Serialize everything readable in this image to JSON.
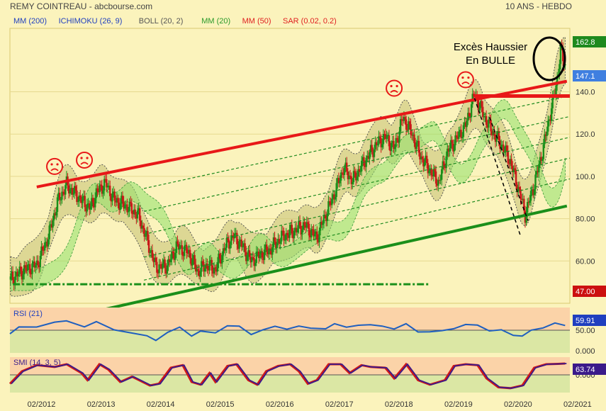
{
  "header": {
    "title": "REMY COINTREAU - abcbourse.com",
    "period": "10 ANS - HEBDO"
  },
  "legend": [
    {
      "label": "MM (200)",
      "color": "#1f3fbf"
    },
    {
      "label": "ICHIMOKU (26, 9)",
      "color": "#1f3fbf"
    },
    {
      "label": "BOLL (20, 2)",
      "color": "#555555"
    },
    {
      "label": "MM (20)",
      "color": "#2a9a2a"
    },
    {
      "label": "MM (50)",
      "color": "#e02020"
    },
    {
      "label": "SAR (0.02, 0.2)",
      "color": "#e02020"
    }
  ],
  "annotation": {
    "line1": "Excès Haussier",
    "line2": "En BULLE"
  },
  "chart_data": [
    {
      "type": "line",
      "name": "price",
      "x_labels": [
        "02/2012",
        "02/2013",
        "02/2014",
        "02/2015",
        "02/2016",
        "02/2017",
        "02/2018",
        "02/2019",
        "02/2020",
        "02/2021"
      ],
      "y_ticks": [
        60.0,
        80.0,
        100.0,
        120.0,
        140.0
      ],
      "ylim": [
        40,
        170
      ],
      "badges": [
        {
          "value": "162.8",
          "bg": "#1e8a1e"
        },
        {
          "value": "147.1",
          "bg": "#3f7fe0"
        },
        {
          "value": "47.00",
          "bg": "#cc1010"
        }
      ],
      "close": [
        [
          2011.55,
          51
        ],
        [
          2011.8,
          56
        ],
        [
          2012.0,
          58
        ],
        [
          2012.2,
          72
        ],
        [
          2012.35,
          88
        ],
        [
          2012.5,
          96
        ],
        [
          2012.7,
          90
        ],
        [
          2012.9,
          85
        ],
        [
          2013.0,
          92
        ],
        [
          2013.15,
          97
        ],
        [
          2013.3,
          89
        ],
        [
          2013.5,
          86
        ],
        [
          2013.7,
          82
        ],
        [
          2013.85,
          70
        ],
        [
          2014.0,
          57
        ],
        [
          2014.2,
          58
        ],
        [
          2014.35,
          67
        ],
        [
          2014.55,
          64
        ],
        [
          2014.7,
          55
        ],
        [
          2014.85,
          58
        ],
        [
          2015.0,
          56
        ],
        [
          2015.15,
          66
        ],
        [
          2015.3,
          72
        ],
        [
          2015.45,
          67
        ],
        [
          2015.6,
          60
        ],
        [
          2015.75,
          63
        ],
        [
          2015.9,
          65
        ],
        [
          2016.1,
          71
        ],
        [
          2016.3,
          74
        ],
        [
          2016.5,
          77
        ],
        [
          2016.7,
          71
        ],
        [
          2016.85,
          82
        ],
        [
          2017.0,
          92
        ],
        [
          2017.15,
          104
        ],
        [
          2017.3,
          98
        ],
        [
          2017.5,
          107
        ],
        [
          2017.7,
          115
        ],
        [
          2017.85,
          119
        ],
        [
          2018.0,
          113
        ],
        [
          2018.15,
          128
        ],
        [
          2018.3,
          120
        ],
        [
          2018.45,
          109
        ],
        [
          2018.6,
          103
        ],
        [
          2018.75,
          97
        ],
        [
          2018.9,
          112
        ],
        [
          2019.05,
          118
        ],
        [
          2019.2,
          124
        ],
        [
          2019.35,
          139
        ],
        [
          2019.5,
          129
        ],
        [
          2019.65,
          121
        ],
        [
          2019.8,
          115
        ],
        [
          2019.95,
          107
        ],
        [
          2020.1,
          93
        ],
        [
          2020.2,
          82
        ],
        [
          2020.35,
          96
        ],
        [
          2020.5,
          113
        ],
        [
          2020.6,
          127
        ],
        [
          2020.72,
          143
        ],
        [
          2020.8,
          160
        ],
        [
          2020.87,
          152
        ]
      ],
      "trendlines": [
        {
          "name": "resistance",
          "from": [
            2012.0,
            95
          ],
          "to": [
            2020.9,
            145
          ]
        },
        {
          "name": "support",
          "from": [
            2012.0,
            30
          ],
          "to": [
            2020.9,
            86
          ]
        },
        {
          "name": "horizontal-support",
          "from": [
            2011.6,
            49
          ],
          "to": [
            2018.6,
            49
          ]
        },
        {
          "name": "horizontal-resistance",
          "from": [
            2019.35,
            138
          ],
          "to": [
            2020.95,
            138
          ]
        }
      ],
      "smileys": [
        [
          2012.3,
          100
        ],
        [
          2012.8,
          103
        ],
        [
          2018.0,
          137
        ],
        [
          2019.2,
          141
        ]
      ]
    },
    {
      "type": "line",
      "name": "RSI (21)",
      "ylim": [
        0,
        100
      ],
      "y_ticks": [
        50.0,
        0.0
      ],
      "last_value": "59.91",
      "series": [
        [
          2011.55,
          42
        ],
        [
          2011.7,
          55
        ],
        [
          2012.0,
          60
        ],
        [
          2012.3,
          66
        ],
        [
          2012.5,
          70
        ],
        [
          2012.8,
          60
        ],
        [
          2013.0,
          66
        ],
        [
          2013.3,
          52
        ],
        [
          2013.6,
          45
        ],
        [
          2013.85,
          35
        ],
        [
          2014.0,
          30
        ],
        [
          2014.2,
          45
        ],
        [
          2014.4,
          55
        ],
        [
          2014.6,
          40
        ],
        [
          2014.75,
          46
        ],
        [
          2015.0,
          44
        ],
        [
          2015.2,
          62
        ],
        [
          2015.4,
          56
        ],
        [
          2015.6,
          42
        ],
        [
          2015.8,
          52
        ],
        [
          2016.0,
          56
        ],
        [
          2016.2,
          55
        ],
        [
          2016.4,
          58
        ],
        [
          2016.6,
          53
        ],
        [
          2016.85,
          56
        ],
        [
          2017.0,
          62
        ],
        [
          2017.2,
          57
        ],
        [
          2017.4,
          63
        ],
        [
          2017.6,
          59
        ],
        [
          2017.8,
          61
        ],
        [
          2018.0,
          53
        ],
        [
          2018.2,
          62
        ],
        [
          2018.4,
          49
        ],
        [
          2018.6,
          45
        ],
        [
          2018.8,
          48
        ],
        [
          2019.0,
          56
        ],
        [
          2019.2,
          60
        ],
        [
          2019.4,
          62
        ],
        [
          2019.6,
          50
        ],
        [
          2019.8,
          48
        ],
        [
          2020.0,
          41
        ],
        [
          2020.15,
          37
        ],
        [
          2020.3,
          48
        ],
        [
          2020.5,
          58
        ],
        [
          2020.7,
          64
        ],
        [
          2020.87,
          60
        ]
      ]
    },
    {
      "type": "line",
      "name": "SMI (14, 3, 5)",
      "ylim": [
        -100,
        100
      ],
      "y_ticks": [
        0.0
      ],
      "last_value": "63.74",
      "series": [
        [
          2011.55,
          -50
        ],
        [
          2011.75,
          20
        ],
        [
          2012.0,
          55
        ],
        [
          2012.3,
          45
        ],
        [
          2012.5,
          60
        ],
        [
          2012.75,
          10
        ],
        [
          2012.85,
          -30
        ],
        [
          2013.05,
          60
        ],
        [
          2013.2,
          30
        ],
        [
          2013.4,
          -40
        ],
        [
          2013.6,
          -10
        ],
        [
          2013.9,
          -60
        ],
        [
          2014.05,
          -50
        ],
        [
          2014.25,
          40
        ],
        [
          2014.45,
          55
        ],
        [
          2014.6,
          -40
        ],
        [
          2014.75,
          -55
        ],
        [
          2014.9,
          10
        ],
        [
          2015.0,
          -40
        ],
        [
          2015.2,
          50
        ],
        [
          2015.35,
          60
        ],
        [
          2015.55,
          -30
        ],
        [
          2015.7,
          -55
        ],
        [
          2015.85,
          20
        ],
        [
          2016.05,
          50
        ],
        [
          2016.25,
          60
        ],
        [
          2016.4,
          20
        ],
        [
          2016.55,
          -50
        ],
        [
          2016.7,
          -30
        ],
        [
          2016.9,
          60
        ],
        [
          2017.1,
          60
        ],
        [
          2017.25,
          10
        ],
        [
          2017.45,
          55
        ],
        [
          2017.6,
          45
        ],
        [
          2017.85,
          40
        ],
        [
          2018.0,
          -20
        ],
        [
          2018.2,
          60
        ],
        [
          2018.4,
          -30
        ],
        [
          2018.6,
          -55
        ],
        [
          2018.85,
          -30
        ],
        [
          2019.0,
          50
        ],
        [
          2019.2,
          60
        ],
        [
          2019.4,
          55
        ],
        [
          2019.55,
          -20
        ],
        [
          2019.75,
          -70
        ],
        [
          2019.95,
          -75
        ],
        [
          2020.15,
          -60
        ],
        [
          2020.35,
          40
        ],
        [
          2020.55,
          60
        ],
        [
          2020.75,
          62
        ],
        [
          2020.87,
          64
        ]
      ]
    }
  ]
}
